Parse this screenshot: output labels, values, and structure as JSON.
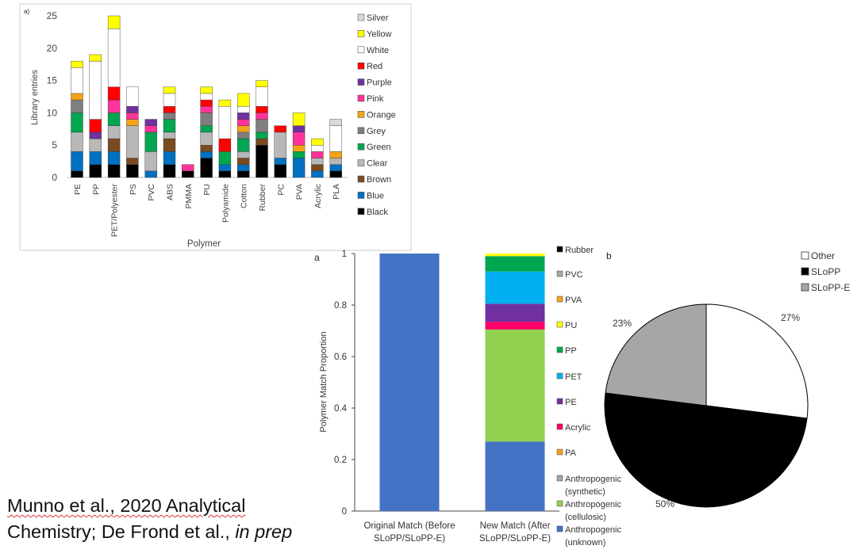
{
  "chart_data": [
    {
      "id": "a_top",
      "type": "bar",
      "stacked": true,
      "panel_label": "a)",
      "xlabel": "Polymer",
      "ylabel": "Library entries",
      "ylim": [
        0,
        25
      ],
      "yticks": [
        0,
        5,
        10,
        15,
        20,
        25
      ],
      "legend_position": "right",
      "categories": [
        "PE",
        "PP",
        "PET/Polyester",
        "PS",
        "PVC",
        "ABS",
        "PMMA",
        "PU",
        "Polyamide",
        "Cotton",
        "Rubber",
        "PC",
        "PVA",
        "Acrylic",
        "PLA"
      ],
      "series": [
        {
          "name": "Black",
          "color": "#000000",
          "values": [
            1,
            2,
            2,
            2,
            0,
            2,
            1,
            3,
            1,
            1,
            5,
            2,
            0,
            0,
            1
          ]
        },
        {
          "name": "Blue",
          "color": "#0070c0",
          "values": [
            3,
            2,
            2,
            0,
            1,
            2,
            0,
            1,
            1,
            1,
            0,
            1,
            3,
            1,
            1
          ]
        },
        {
          "name": "Brown",
          "color": "#7b4a21",
          "values": [
            0,
            0,
            2,
            1,
            0,
            2,
            0,
            1,
            0,
            1,
            1,
            0,
            0,
            1,
            0
          ]
        },
        {
          "name": "Clear",
          "color": "#b8b8b8",
          "values": [
            3,
            2,
            2,
            5,
            3,
            1,
            0,
            2,
            0,
            1,
            0,
            4,
            0,
            1,
            1
          ]
        },
        {
          "name": "Green",
          "color": "#00a650",
          "values": [
            3,
            0,
            2,
            0,
            3,
            2,
            0,
            1,
            2,
            2,
            1,
            0,
            1,
            0,
            0
          ]
        },
        {
          "name": "Grey",
          "color": "#7f7f7f",
          "values": [
            2,
            0,
            0,
            0,
            0,
            1,
            0,
            2,
            0,
            1,
            2,
            0,
            0,
            0,
            0
          ]
        },
        {
          "name": "Orange",
          "color": "#f5a31a",
          "values": [
            1,
            0,
            0,
            1,
            0,
            0,
            0,
            0,
            0,
            1,
            0,
            0,
            1,
            0,
            1
          ]
        },
        {
          "name": "Pink",
          "color": "#ff3399",
          "values": [
            0,
            0,
            2,
            1,
            1,
            0,
            1,
            1,
            0,
            1,
            1,
            0,
            2,
            1,
            0
          ]
        },
        {
          "name": "Purple",
          "color": "#7030a0",
          "values": [
            0,
            1,
            0,
            1,
            1,
            0,
            0,
            0,
            0,
            1,
            0,
            0,
            1,
            0,
            0
          ]
        },
        {
          "name": "Red",
          "color": "#ff0000",
          "values": [
            0,
            2,
            2,
            0,
            0,
            1,
            0,
            1,
            2,
            0,
            1,
            1,
            0,
            0,
            0
          ]
        },
        {
          "name": "White",
          "color": "#ffffff",
          "values": [
            4,
            9,
            9,
            3,
            0,
            2,
            0,
            1,
            5,
            1,
            3,
            0,
            0,
            1,
            4
          ]
        },
        {
          "name": "Yellow",
          "color": "#ffff00",
          "values": [
            1,
            1,
            2,
            0,
            0,
            1,
            0,
            1,
            1,
            2,
            1,
            0,
            2,
            1,
            0
          ]
        },
        {
          "name": "Silver",
          "color": "#d9d9d9",
          "values": [
            0,
            0,
            0,
            0,
            0,
            0,
            0,
            0,
            0,
            0,
            0,
            0,
            0,
            0,
            1
          ]
        }
      ]
    },
    {
      "id": "a_bottom",
      "type": "bar",
      "stacked": true,
      "panel_label": "a",
      "xlabel": "",
      "ylabel": "Polymer Match Proportion",
      "ylim": [
        0,
        1
      ],
      "yticks": [
        0,
        0.2,
        0.4,
        0.6,
        0.8,
        1
      ],
      "ytick_labels": [
        "0",
        "0.2",
        "0.4",
        "0.6",
        "0.8",
        "1"
      ],
      "legend_position": "right",
      "categories": [
        {
          "line1": "Original Match (Before",
          "line2": "SLoPP/SLoPP-E)"
        },
        {
          "line1": "New Match (After",
          "line2": "SLoPP/SLoPP-E)"
        }
      ],
      "series": [
        {
          "name": "Anthropogenic (unknown)",
          "legend_lines": [
            "Anthropogenic",
            "(unknown)"
          ],
          "color": "#4472c4",
          "values": [
            1.0,
            0.27
          ]
        },
        {
          "name": "Anthropogenic (cellulosic)",
          "legend_lines": [
            "Anthropogenic",
            "(cellulosic)"
          ],
          "color": "#92d050",
          "values": [
            0,
            0.435
          ]
        },
        {
          "name": "Anthropogenic (synthetic)",
          "legend_lines": [
            "Anthropogenic",
            "(synthetic)"
          ],
          "color": "#a5a5a5",
          "values": [
            0,
            0
          ]
        },
        {
          "name": "PA",
          "legend_lines": [
            "PA"
          ],
          "color": "#f5a31a",
          "values": [
            0,
            0
          ]
        },
        {
          "name": "Acrylic",
          "legend_lines": [
            "Acrylic"
          ],
          "color": "#ff0066",
          "values": [
            0,
            0.03
          ]
        },
        {
          "name": "PE",
          "legend_lines": [
            "PE"
          ],
          "color": "#7030a0",
          "values": [
            0,
            0.07
          ]
        },
        {
          "name": "PET",
          "legend_lines": [
            "PET"
          ],
          "color": "#00b0f0",
          "values": [
            0,
            0.125
          ]
        },
        {
          "name": "PP",
          "legend_lines": [
            "PP"
          ],
          "color": "#00a650",
          "values": [
            0,
            0.06
          ]
        },
        {
          "name": "PU",
          "legend_lines": [
            "PU"
          ],
          "color": "#ffff00",
          "values": [
            0,
            0.01
          ]
        },
        {
          "name": "PVA",
          "legend_lines": [
            "PVA"
          ],
          "color": "#f5a31a",
          "values": [
            0,
            0
          ]
        },
        {
          "name": "PVC",
          "legend_lines": [
            "PVC"
          ],
          "color": "#a5a5a5",
          "values": [
            0,
            0
          ]
        },
        {
          "name": "Rubber",
          "legend_lines": [
            "Rubber"
          ],
          "color": "#000000",
          "values": [
            0,
            0
          ]
        }
      ]
    },
    {
      "id": "b",
      "type": "pie",
      "panel_label": "b",
      "legend_position": "top-right",
      "slices": [
        {
          "name": "Other",
          "value": 27,
          "label": "27%",
          "color": "#ffffff"
        },
        {
          "name": "SLoPP",
          "value": 50,
          "label": "50%",
          "color": "#000000"
        },
        {
          "name": "SLoPP-E",
          "value": 23,
          "label": "23%",
          "color": "#a6a6a6"
        }
      ]
    }
  ],
  "citation": {
    "line1": "Munno et al., 2020 Analytical",
    "author2": "Chemistry; De Frond et al., ",
    "in_prep": "in prep"
  }
}
